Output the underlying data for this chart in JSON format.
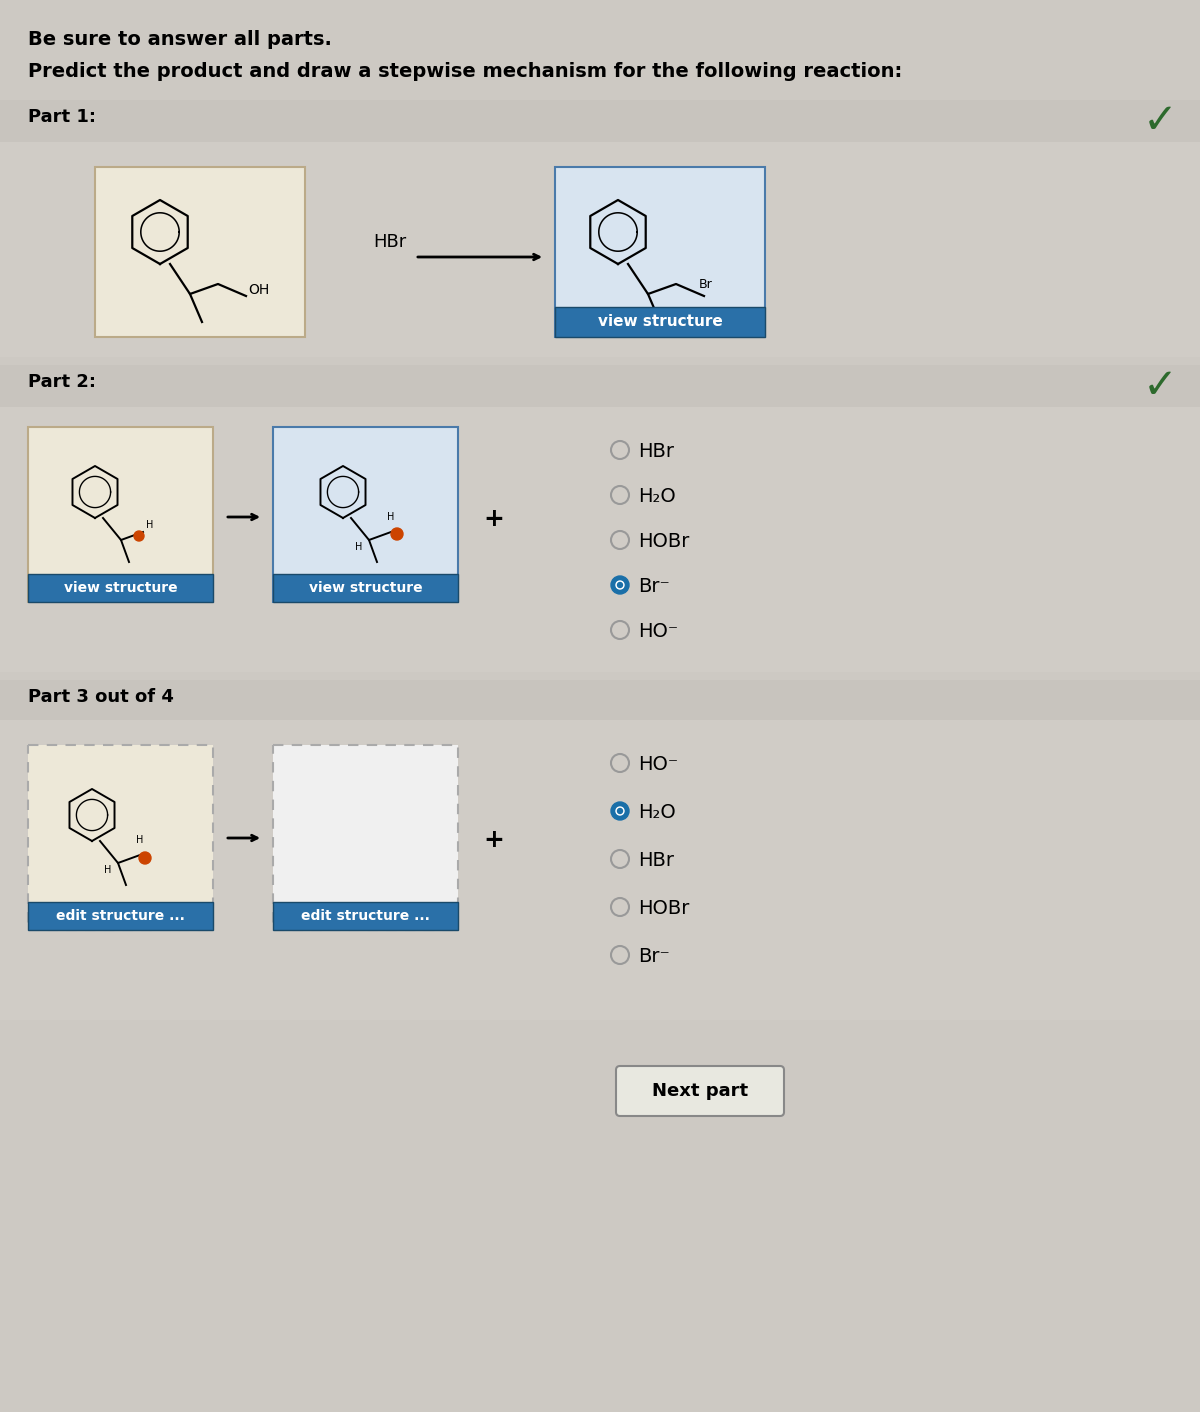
{
  "bg_color": "#cdc9c3",
  "section_bg": "#c8c4be",
  "content_bg": "#d0ccc6",
  "white": "#ffffff",
  "blue_btn": "#2a70a8",
  "title1": "Be sure to answer all parts.",
  "title2": "Predict the product and draw a stepwise mechanism for the following reaction:",
  "part1_label": "Part 1:",
  "part2_label": "Part 2:",
  "part3_label": "Part 3 out of 4",
  "part2_options": [
    "HBr",
    "H₂O",
    "HOBr",
    "Br⁻",
    "HO⁻"
  ],
  "part2_selected": 3,
  "part3_options": [
    "HO⁻",
    "H₂O",
    "HBr",
    "HOBr",
    "Br⁻"
  ],
  "part3_selected": 1,
  "view_structure": "view structure",
  "edit_structure": "edit structure ...",
  "next_part": "Next part",
  "checkmark_color": "#2d6a2d",
  "hbr_label": "HBr",
  "plus_label": "+",
  "radio_selected_color": "#1a6fa8",
  "mol_box_bg_warm": "#ede8d8",
  "mol_box_bg_blue": "#d8e4f0",
  "mol_box_border_blue": "#4a7aaa",
  "mol_box_bg_empty": "#f0f0f0",
  "mol_box_border_gray": "#aaaaaa"
}
